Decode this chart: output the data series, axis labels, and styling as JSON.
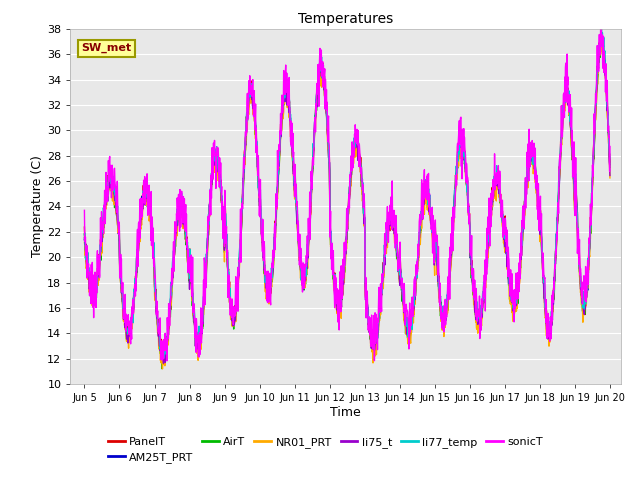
{
  "title": "Temperatures",
  "xlabel": "Time",
  "ylabel": "Temperature (C)",
  "legend_label": "SW_met",
  "series_names": [
    "PanelT",
    "AM25T_PRT",
    "AirT",
    "NR01_PRT",
    "li75_t",
    "li77_temp",
    "sonicT"
  ],
  "series_colors": [
    "#dd0000",
    "#0000cc",
    "#00bb00",
    "#ffaa00",
    "#9900cc",
    "#00cccc",
    "#ff00ff"
  ],
  "ylim": [
    10,
    38
  ],
  "xlim_days": [
    4.6,
    20.3
  ],
  "xtick_labels": [
    "Jun 5",
    "Jun 6",
    "Jun 7",
    "Jun 8",
    "Jun 9",
    "Jun 10",
    "Jun 11",
    "Jun 12",
    "Jun 13",
    "Jun 14",
    "Jun 15",
    "Jun 16",
    "Jun 17",
    "Jun 18",
    "Jun 19",
    "Jun 20"
  ],
  "xtick_positions": [
    5,
    6,
    7,
    8,
    9,
    10,
    11,
    12,
    13,
    14,
    15,
    16,
    17,
    18,
    19,
    20
  ],
  "bg_color": "#e8e8e8",
  "grid_color": "#ffffff",
  "linewidth": 1.0,
  "annotation_box_color": "#ffff99",
  "annotation_text_color": "#880000",
  "annotation_border_color": "#999900"
}
